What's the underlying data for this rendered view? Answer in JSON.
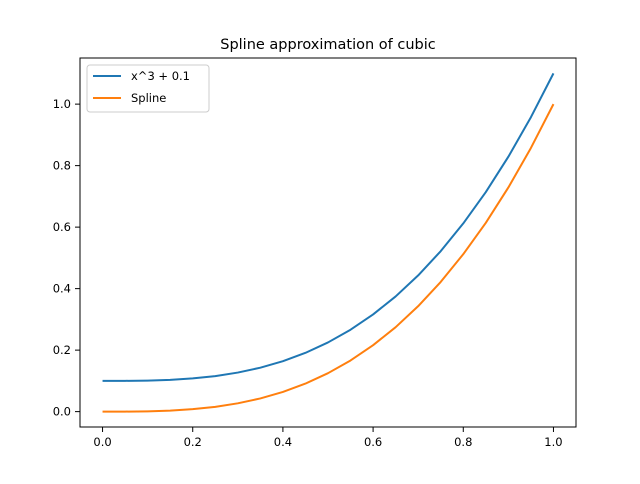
{
  "chart_data": {
    "type": "line",
    "title": "Spline approximation of cubic",
    "xlabel": "",
    "ylabel": "",
    "xlim": [
      -0.05,
      1.05
    ],
    "ylim": [
      -0.05,
      1.15
    ],
    "xticks": [
      0.0,
      0.2,
      0.4,
      0.6,
      0.8,
      1.0
    ],
    "xtick_labels": [
      "0.0",
      "0.2",
      "0.4",
      "0.6",
      "0.8",
      "1.0"
    ],
    "yticks": [
      0.0,
      0.2,
      0.4,
      0.6,
      0.8,
      1.0
    ],
    "ytick_labels": [
      "0.0",
      "0.2",
      "0.4",
      "0.6",
      "0.8",
      "1.0"
    ],
    "grid": false,
    "legend_position": "upper-left",
    "x": [
      0.0,
      0.05,
      0.1,
      0.15,
      0.2,
      0.25,
      0.3,
      0.35,
      0.4,
      0.45,
      0.5,
      0.55,
      0.6,
      0.65,
      0.7,
      0.75,
      0.8,
      0.85,
      0.9,
      0.95,
      1.0
    ],
    "series": [
      {
        "name": "x^3 + 0.1",
        "color": "#1f77b4",
        "values": [
          0.1,
          0.1001,
          0.101,
          0.1034,
          0.108,
          0.1156,
          0.127,
          0.1429,
          0.164,
          0.1911,
          0.225,
          0.2664,
          0.316,
          0.3746,
          0.443,
          0.5219,
          0.612,
          0.7141,
          0.829,
          0.9574,
          1.1
        ]
      },
      {
        "name": "Spline",
        "color": "#ff7f0e",
        "values": [
          0.0,
          0.0001,
          0.001,
          0.0034,
          0.008,
          0.0156,
          0.027,
          0.0429,
          0.064,
          0.0911,
          0.125,
          0.1664,
          0.216,
          0.2746,
          0.343,
          0.4219,
          0.512,
          0.6141,
          0.729,
          0.8574,
          1.0
        ]
      }
    ]
  }
}
